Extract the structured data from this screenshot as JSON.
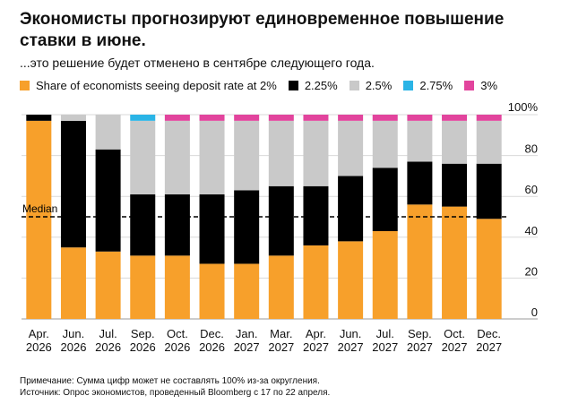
{
  "header": {
    "title": "Экономисты прогнозируют единовременное повышение ставки в июне.",
    "subtitle": "...это решение будет отменено в сентябре следующего года."
  },
  "footer": {
    "note": "Примечание: Сумма цифр может не составлять 100% из-за округления.",
    "source": "Источник: Опрос экономистов, проведенный Bloomberg с 17 по 22 апреля."
  },
  "chart_data": {
    "type": "bar",
    "stacked": true,
    "categories": [
      [
        "Apr.",
        "2026"
      ],
      [
        "Jun.",
        "2026"
      ],
      [
        "Jul.",
        "2026"
      ],
      [
        "Sep.",
        "2026"
      ],
      [
        "Oct.",
        "2026"
      ],
      [
        "Dec.",
        "2026"
      ],
      [
        "Jan.",
        "2027"
      ],
      [
        "Mar.",
        "2027"
      ],
      [
        "Apr.",
        "2027"
      ],
      [
        "Jun.",
        "2027"
      ],
      [
        "Jul.",
        "2027"
      ],
      [
        "Sep.",
        "2027"
      ],
      [
        "Oct.",
        "2027"
      ],
      [
        "Dec.",
        "2027"
      ]
    ],
    "series": [
      {
        "name": "Share of economists seeing deposit rate at 2%",
        "color": "#f7a02b",
        "values": [
          97,
          35,
          33,
          31,
          31,
          27,
          27,
          31,
          36,
          38,
          43,
          56,
          55,
          49
        ]
      },
      {
        "name": "2.25%",
        "color": "#000000",
        "values": [
          3,
          62,
          50,
          30,
          30,
          34,
          36,
          34,
          29,
          32,
          31,
          21,
          21,
          27
        ]
      },
      {
        "name": "2.5%",
        "color": "#c9c9c9",
        "values": [
          0,
          3,
          17,
          36,
          36,
          36,
          34,
          32,
          32,
          27,
          23,
          20,
          21,
          21
        ]
      },
      {
        "name": "2.75%",
        "color": "#2ab4e6",
        "values": [
          0,
          0,
          0,
          3,
          0,
          0,
          0,
          0,
          0,
          0,
          0,
          0,
          0,
          0
        ]
      },
      {
        "name": "3%",
        "color": "#e2449d",
        "values": [
          0,
          0,
          0,
          0,
          3,
          3,
          3,
          3,
          3,
          3,
          3,
          3,
          3,
          3
        ]
      }
    ],
    "ylim": [
      0,
      100
    ],
    "y_ticks": [
      0,
      20,
      40,
      60,
      80,
      100
    ],
    "y_tick_labels": [
      "0",
      "20",
      "40",
      "60",
      "80",
      "100%"
    ],
    "y_axis_position": "right",
    "grid": true,
    "legend_position": "top",
    "reference_line": {
      "label": "Median",
      "value": 50,
      "style": "dashed"
    }
  }
}
